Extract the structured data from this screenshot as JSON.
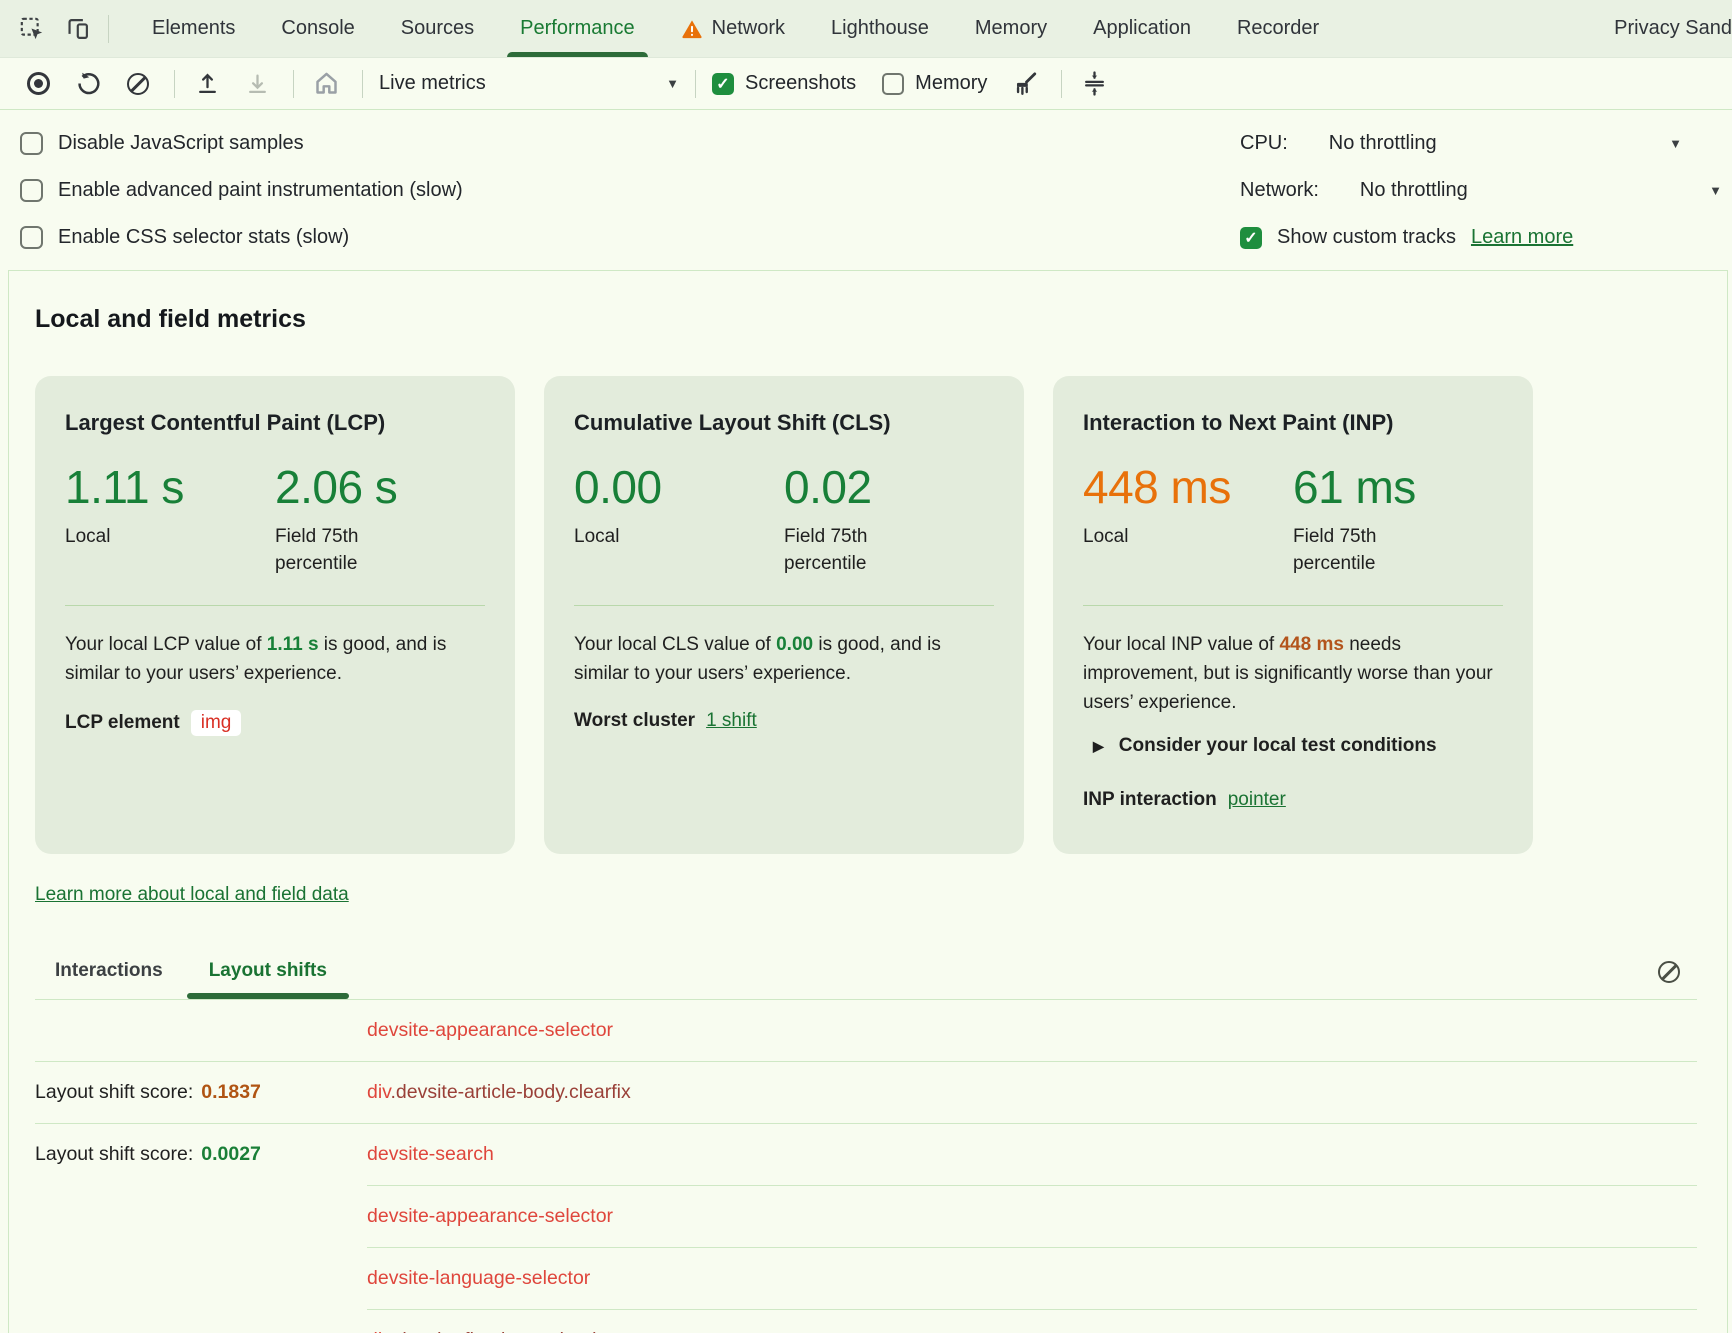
{
  "colors": {
    "accent_green": "#188038",
    "link_green": "#1a7333",
    "tab_active_green": "#197a33",
    "metric_orange": "#e8710a",
    "desc_value_orange": "#b3541c",
    "score_orange": "#b05413",
    "score_green": "#1a7f37",
    "element_red": "#df463c",
    "element_dark_red": "#9a4038",
    "card_bg": "#e3ecdc",
    "panel_bg": "#f8fcf0"
  },
  "glyphs": {
    "caret_down": "▼",
    "check": "✓",
    "disclosure_triangle": "▶"
  },
  "tabbar": {
    "icons": [
      "inspect-icon",
      "device-toolbar-icon"
    ],
    "items": [
      {
        "label": "Elements",
        "active": false
      },
      {
        "label": "Console",
        "active": false
      },
      {
        "label": "Sources",
        "active": false
      },
      {
        "label": "Performance",
        "active": true
      },
      {
        "label": "Network",
        "active": false,
        "warning": true
      },
      {
        "label": "Lighthouse",
        "active": false
      },
      {
        "label": "Memory",
        "active": false
      },
      {
        "label": "Application",
        "active": false
      },
      {
        "label": "Recorder",
        "active": false
      },
      {
        "label": "Privacy Sand",
        "active": false
      }
    ]
  },
  "toolbar": {
    "icons": [
      "record-icon",
      "reload-icon",
      "clear-icon",
      "upload-icon",
      "download-icon",
      "home-icon",
      "brush-icon",
      "fit-screen-icon"
    ],
    "view_select": {
      "value": "Live metrics"
    },
    "screenshots": {
      "label": "Screenshots",
      "checked": true
    },
    "memory": {
      "label": "Memory",
      "checked": false
    }
  },
  "settings": {
    "left": [
      {
        "label": "Disable JavaScript samples",
        "checked": false
      },
      {
        "label": "Enable advanced paint instrumentation (slow)",
        "checked": false
      },
      {
        "label": "Enable CSS selector stats (slow)",
        "checked": false
      }
    ],
    "cpu": {
      "label": "CPU:",
      "value": "No throttling"
    },
    "network": {
      "label": "Network:",
      "value": "No throttling"
    },
    "custom_tracks": {
      "label": "Show custom tracks",
      "checked": true,
      "link": "Learn more"
    }
  },
  "metrics": {
    "heading": "Local and field metrics",
    "local_label": "Local",
    "field_label": "Field 75th percentile",
    "cards": [
      {
        "title": "Largest Contentful Paint (LCP)",
        "local_value": "1.11 s",
        "field_value": "2.06 s",
        "desc_prefix": "Your local LCP value of ",
        "desc_value": "1.11 s",
        "desc_suffix": " is good, and is similar to your users’ experience.",
        "extra_label": "LCP element",
        "chip": "img"
      },
      {
        "title": "Cumulative Layout Shift (CLS)",
        "local_value": "0.00",
        "field_value": "0.02",
        "desc_prefix": "Your local CLS value of ",
        "desc_value": "0.00",
        "desc_suffix": " is good, and is similar to your users’ experience.",
        "extra_label": "Worst cluster",
        "link": "1 shift"
      },
      {
        "title": "Interaction to Next Paint (INP)",
        "local_value": "448 ms",
        "field_value": "61 ms",
        "desc_prefix": "Your local INP value of ",
        "desc_value": "448 ms",
        "desc_suffix": " needs improvement, but is significantly worse than your users’ experience.",
        "disclosure": "Consider your local test conditions",
        "extra_label": "INP interaction",
        "link": "pointer"
      }
    ],
    "learn_more": "Learn more about local and field data"
  },
  "log": {
    "tabs": [
      {
        "label": "Interactions",
        "active": false
      },
      {
        "label": "Layout shifts",
        "active": true
      }
    ],
    "score_label": "Layout shift score:",
    "rows": [
      {
        "element": "devsite-appearance-selector"
      },
      {
        "divider": "full",
        "score_label": "Layout shift score:",
        "score": "0.1837",
        "score_color": "#b05413",
        "element": "div.devsite-article-body.clearfix"
      },
      {
        "divider": "full",
        "score_label": "Layout shift score:",
        "score": "0.0027",
        "score_color": "#1a7f37",
        "element": "devsite-search"
      },
      {
        "divider": "indent",
        "element": "devsite-appearance-selector"
      },
      {
        "divider": "indent",
        "element": "devsite-language-selector"
      },
      {
        "divider": "indent",
        "element": "div.devsite-floating-action-buttons"
      }
    ]
  }
}
